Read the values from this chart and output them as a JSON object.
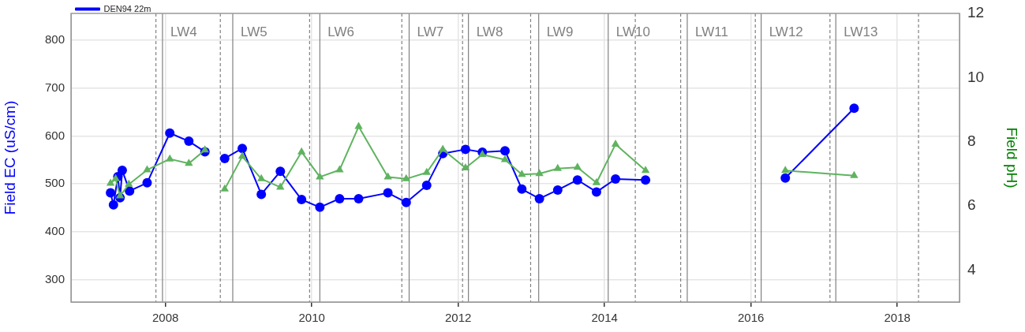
{
  "chart_data": {
    "type": "line",
    "ylabel": "Field EC (uS/cm)",
    "y2label": "Field pH)",
    "xlim": [
      2006.71,
      2018.85
    ],
    "xticks": [
      2008,
      2010,
      2012,
      2014,
      2016,
      2018
    ],
    "ylim": [
      253,
      856
    ],
    "yticks": [
      300,
      400,
      500,
      600,
      700,
      800
    ],
    "y2lim": [
      3,
      12
    ],
    "y2ticks": [
      4,
      6,
      8,
      10,
      12
    ],
    "grid": true,
    "legend": "top left",
    "series": [
      {
        "name": "DEN94 22m",
        "color": "#0000ff",
        "marker": "circle",
        "x": [
          2007.25,
          2007.29,
          2007.35,
          2007.38,
          2007.41,
          2007.51,
          2007.75,
          2008.06,
          2008.32,
          2008.54,
          2008.68,
          2008.81,
          2009.05,
          2009.31,
          2009.57,
          2009.86,
          2010.11,
          2010.38,
          2010.64,
          2011.04,
          2011.29,
          2011.57,
          2011.79,
          2012.1,
          2012.33,
          2012.64,
          2012.87,
          2013.11,
          2013.36,
          2013.63,
          2013.89,
          2014.15,
          2014.56,
          2015.5,
          2016.47,
          2017.41
        ],
        "values": [
          481,
          456,
          515,
          471,
          528,
          485,
          502,
          606,
          589,
          567,
          null,
          553,
          574,
          478,
          526,
          467,
          451,
          469,
          469,
          481,
          461,
          497,
          563,
          572,
          566,
          569,
          489,
          469,
          487,
          508,
          483,
          510,
          508,
          null,
          512,
          658
        ]
      },
      {
        "color": "#5fb35f",
        "marker": "triangle",
        "axis": "y2",
        "x": [
          2007.25,
          2007.32,
          2007.38,
          2007.5,
          2007.75,
          2008.06,
          2008.32,
          2008.54,
          2008.68,
          2008.81,
          2009.05,
          2009.31,
          2009.57,
          2009.86,
          2010.11,
          2010.38,
          2010.64,
          2011.04,
          2011.29,
          2011.57,
          2011.79,
          2012.1,
          2012.33,
          2012.64,
          2012.87,
          2013.11,
          2013.36,
          2013.63,
          2013.89,
          2014.15,
          2014.56,
          2015.5,
          2016.47,
          2017.41
        ],
        "values": [
          6.7,
          6.84,
          6.31,
          6.67,
          7.12,
          7.46,
          7.32,
          7.74,
          null,
          6.52,
          7.54,
          6.84,
          6.58,
          7.68,
          6.9,
          7.12,
          8.47,
          6.9,
          6.84,
          7.04,
          7.76,
          7.18,
          7.6,
          7.44,
          6.98,
          7.0,
          7.16,
          7.2,
          6.72,
          7.92,
          7.1,
          null,
          7.1,
          6.94
        ]
      }
    ],
    "ref_lines": [
      {
        "axis": "x",
        "value": 2007.96,
        "label": "LW4",
        "color": "#808080",
        "line_style": "solid"
      },
      {
        "axis": "x",
        "value": 2008.92,
        "label": "LW5",
        "color": "#808080",
        "line_style": "solid"
      },
      {
        "axis": "x",
        "value": 2010.11,
        "label": "LW6",
        "color": "#808080",
        "line_style": "solid"
      },
      {
        "axis": "x",
        "value": 2011.33,
        "label": "LW7",
        "color": "#808080",
        "line_style": "solid"
      },
      {
        "axis": "x",
        "value": 2012.14,
        "label": "LW8",
        "color": "#808080",
        "line_style": "solid"
      },
      {
        "axis": "x",
        "value": 2013.1,
        "label": "LW9",
        "color": "#808080",
        "line_style": "solid"
      },
      {
        "axis": "x",
        "value": 2014.05,
        "label": "LW10",
        "color": "#808080",
        "line_style": "solid"
      },
      {
        "axis": "x",
        "value": 2015.13,
        "label": "LW11",
        "color": "#808080",
        "line_style": "solid"
      },
      {
        "axis": "x",
        "value": 2016.14,
        "label": "LW12",
        "color": "#808080",
        "line_style": "solid"
      },
      {
        "axis": "x",
        "value": 2017.16,
        "label": "LW13",
        "color": "#808080",
        "line_style": "solid"
      },
      {
        "axis": "x",
        "value": 2007.87,
        "color": "#808080",
        "line_style": "dashed"
      },
      {
        "axis": "x",
        "value": 2008.75,
        "color": "#808080",
        "line_style": "dashed"
      },
      {
        "axis": "x",
        "value": 2009.97,
        "color": "#808080",
        "line_style": "dashed"
      },
      {
        "axis": "x",
        "value": 2011.23,
        "color": "#808080",
        "line_style": "dashed"
      },
      {
        "axis": "x",
        "value": 2012.06,
        "color": "#808080",
        "line_style": "dashed"
      },
      {
        "axis": "x",
        "value": 2012.99,
        "color": "#808080",
        "line_style": "dashed"
      },
      {
        "axis": "x",
        "value": 2014.42,
        "color": "#808080",
        "line_style": "dashed"
      },
      {
        "axis": "x",
        "value": 2015.04,
        "color": "#808080",
        "line_style": "dashed"
      },
      {
        "axis": "x",
        "value": 2016.06,
        "color": "#808080",
        "line_style": "dashed"
      },
      {
        "axis": "x",
        "value": 2017.08,
        "color": "#808080",
        "line_style": "dashed"
      },
      {
        "axis": "x",
        "value": 2018.29,
        "color": "#808080",
        "line_style": "dashed"
      }
    ]
  }
}
